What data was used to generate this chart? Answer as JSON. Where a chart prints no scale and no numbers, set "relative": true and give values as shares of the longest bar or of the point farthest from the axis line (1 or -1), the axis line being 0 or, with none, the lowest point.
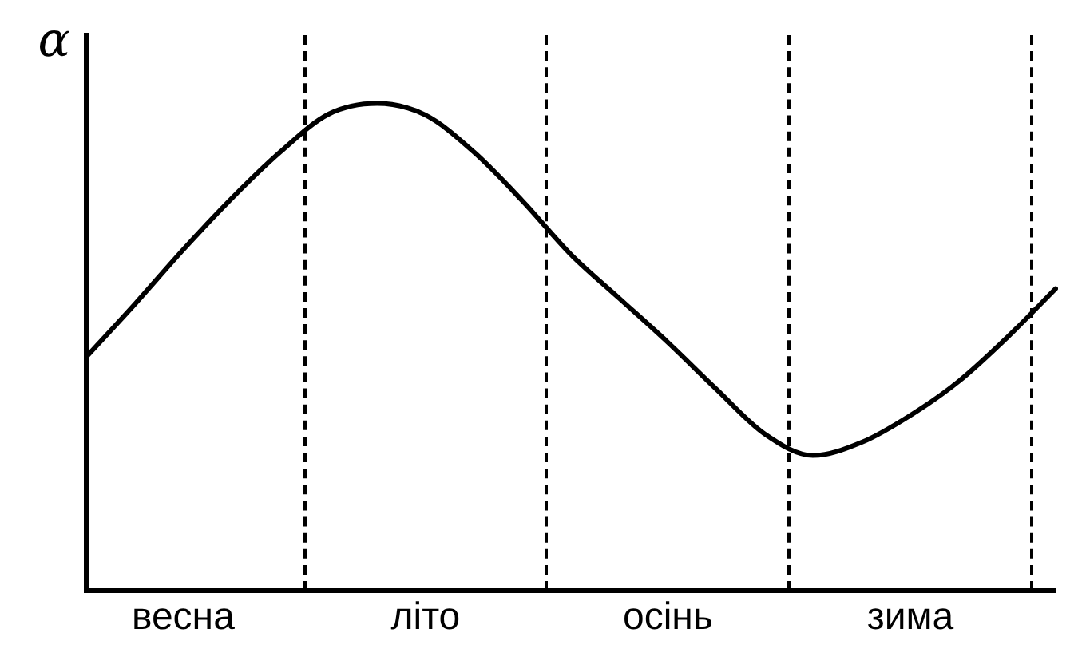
{
  "chart_data": {
    "type": "line",
    "relative": true,
    "ylabel": "α",
    "color": "#000000",
    "line_style": "solid",
    "marker": "none",
    "grid": false,
    "legend": false,
    "categories": [
      null,
      null,
      "весна",
      null,
      null,
      null,
      null,
      "літо",
      null,
      null,
      null,
      null,
      "осінь",
      null,
      null,
      null,
      null,
      "зима",
      null,
      null,
      null
    ],
    "values": [
      0.48,
      0.588,
      0.7,
      0.805,
      0.9,
      0.978,
      1.0,
      0.976,
      0.9,
      0.8,
      0.69,
      0.6,
      0.51,
      0.414,
      0.322,
      0.278,
      0.305,
      0.36,
      0.43,
      0.52,
      0.62
    ]
  }
}
